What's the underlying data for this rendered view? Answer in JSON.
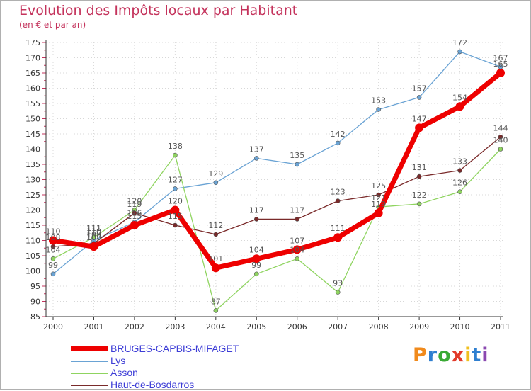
{
  "chart_data": {
    "type": "line",
    "title": "Evolution des Impôts locaux par Habitant",
    "subtitle": "(en € et par an)",
    "xlabel": "",
    "ylabel": "",
    "categories": [
      "2000",
      "2001",
      "2002",
      "2003",
      "2004",
      "2005",
      "2006",
      "2007",
      "2008",
      "2009",
      "2010",
      "2011"
    ],
    "ylim": [
      85,
      175
    ],
    "yticks": [
      85,
      90,
      95,
      100,
      105,
      110,
      115,
      120,
      125,
      130,
      135,
      140,
      145,
      150,
      155,
      160,
      165,
      170,
      175
    ],
    "series": [
      {
        "name": "BRUGES-CAPBIS-MIFAGET",
        "color": "#ee0000",
        "values": [
          110,
          108,
          115,
          120,
          101,
          104,
          107,
          111,
          119,
          147,
          154,
          165
        ]
      },
      {
        "name": "Lys",
        "color": "#6aa3d4",
        "values": [
          99,
          110,
          116,
          127,
          129,
          137,
          135,
          142,
          153,
          157,
          172,
          167
        ]
      },
      {
        "name": "Asson",
        "color": "#8fd460",
        "values": [
          104,
          111,
          120,
          138,
          87,
          99,
          104,
          93,
          121,
          122,
          126,
          140
        ]
      },
      {
        "name": "Haut-de-Bosdarros",
        "color": "#7a2a2a",
        "values": [
          108,
          109,
          119,
          115,
          112,
          117,
          117,
          123,
          125,
          131,
          133,
          144
        ]
      }
    ],
    "legend_position": "bottom-left"
  },
  "logo": {
    "letters": [
      "P",
      "r",
      "o",
      "x",
      "i",
      "t",
      "i"
    ],
    "colors": [
      "#f08a1c",
      "#2f7fd0",
      "#3aaa35",
      "#e23a2a",
      "#f0c020",
      "#2f7fd0",
      "#8a48b0"
    ]
  }
}
